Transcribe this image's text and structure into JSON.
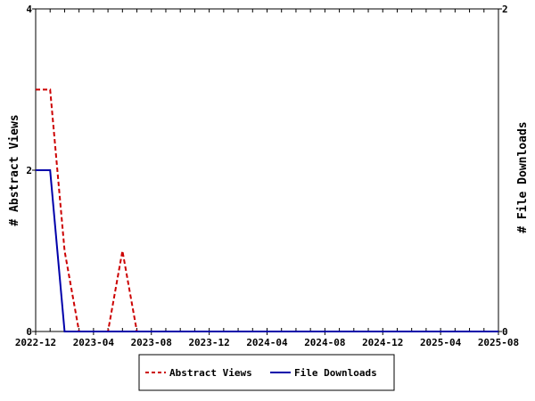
{
  "chart_data": {
    "type": "line",
    "title": "",
    "xlabel": "",
    "ylabel_left": "# Abstract Views",
    "ylabel_right": "# File Downloads",
    "ylim_left": [
      0,
      4
    ],
    "ylim_right": [
      0,
      2
    ],
    "yticks_left": [
      0,
      2,
      4
    ],
    "yticks_right": [
      0,
      2
    ],
    "xlim": [
      "2022-12",
      "2025-08"
    ],
    "xtick_labels": [
      "2022-12",
      "2023-04",
      "2023-08",
      "2023-12",
      "2024-04",
      "2024-08",
      "2024-12",
      "2025-04",
      "2025-08"
    ],
    "legend_position": "bottom-center",
    "x": [
      "2022-12",
      "2023-01",
      "2023-02",
      "2023-03",
      "2023-04",
      "2023-05",
      "2023-06",
      "2023-07",
      "2023-08",
      "2023-09",
      "2023-10",
      "2023-11",
      "2023-12",
      "2024-01",
      "2024-02",
      "2024-03",
      "2024-04",
      "2024-05",
      "2024-06",
      "2024-07",
      "2024-08",
      "2024-09",
      "2024-10",
      "2024-11",
      "2024-12",
      "2025-01",
      "2025-02",
      "2025-03",
      "2025-04",
      "2025-05",
      "2025-06",
      "2025-07",
      "2025-08"
    ],
    "series": [
      {
        "name": "Abstract Views",
        "axis": "left",
        "color": "#cc0000",
        "style": "dashed",
        "values": [
          3,
          3,
          1,
          0,
          0,
          0,
          1,
          0,
          0,
          0,
          0,
          0,
          0,
          0,
          0,
          0,
          0,
          0,
          0,
          0,
          0,
          0,
          0,
          0,
          0,
          0,
          0,
          0,
          0,
          0,
          0,
          0,
          0
        ]
      },
      {
        "name": "File Downloads",
        "axis": "right",
        "color": "#0000aa",
        "style": "solid",
        "values": [
          1,
          1,
          0,
          0,
          0,
          0,
          0,
          0,
          0,
          0,
          0,
          0,
          0,
          0,
          0,
          0,
          0,
          0,
          0,
          0,
          0,
          0,
          0,
          0,
          0,
          0,
          0,
          0,
          0,
          0,
          0,
          0,
          0
        ]
      }
    ]
  }
}
